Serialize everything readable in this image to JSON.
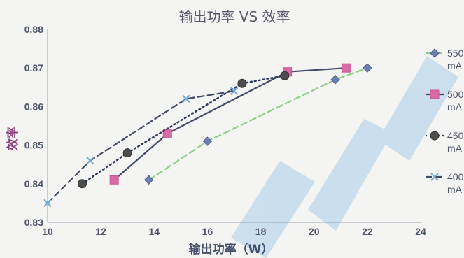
{
  "chart_data": {
    "type": "line",
    "title": "输出功率 VS 效率",
    "xlabel": "输出功率（W）",
    "ylabel": "效率",
    "xlim": [
      10,
      24
    ],
    "ylim": [
      0.83,
      0.88
    ],
    "x_ticks": [
      "10",
      "12",
      "14",
      "16",
      "18",
      "20",
      "22",
      "24"
    ],
    "y_ticks": [
      "0.83",
      "0.84",
      "0.85",
      "0.86",
      "0.87",
      "0.88"
    ],
    "legend_position": "right",
    "grid": false,
    "series": [
      {
        "name": "550 mA",
        "name_lines": [
          "550",
          "mA"
        ],
        "marker": "diamond",
        "color": "#6b7fb0",
        "line_color": "#8fcf8a",
        "line_style": "dashed",
        "points": [
          [
            13.8,
            0.841
          ],
          [
            16.0,
            0.851
          ],
          [
            20.8,
            0.867
          ],
          [
            22.0,
            0.87
          ]
        ]
      },
      {
        "name": "500 mA",
        "name_lines": [
          "500",
          "mA"
        ],
        "marker": "square",
        "color": "#d86aa6",
        "line_color": "#3f4a66",
        "line_style": "solid",
        "points": [
          [
            12.5,
            0.841
          ],
          [
            14.5,
            0.853
          ],
          [
            19.0,
            0.869
          ],
          [
            21.2,
            0.87
          ]
        ]
      },
      {
        "name": "450 mA",
        "name_lines": [
          "450",
          "mA"
        ],
        "marker": "circle",
        "color": "#4d4d4d",
        "line_color": "#2f3a5a",
        "line_style": "dotted",
        "points": [
          [
            11.3,
            0.84
          ],
          [
            13.0,
            0.848
          ],
          [
            17.3,
            0.866
          ],
          [
            18.9,
            0.868
          ]
        ]
      },
      {
        "name": "400 mA",
        "name_lines": [
          "400",
          "mA"
        ],
        "marker": "x",
        "color": "#6fa9d8",
        "line_color": "#3f4a66",
        "line_style": "dashed",
        "points": [
          [
            10.0,
            0.835
          ],
          [
            11.6,
            0.846
          ],
          [
            15.2,
            0.862
          ],
          [
            17.0,
            0.864
          ]
        ]
      }
    ]
  }
}
